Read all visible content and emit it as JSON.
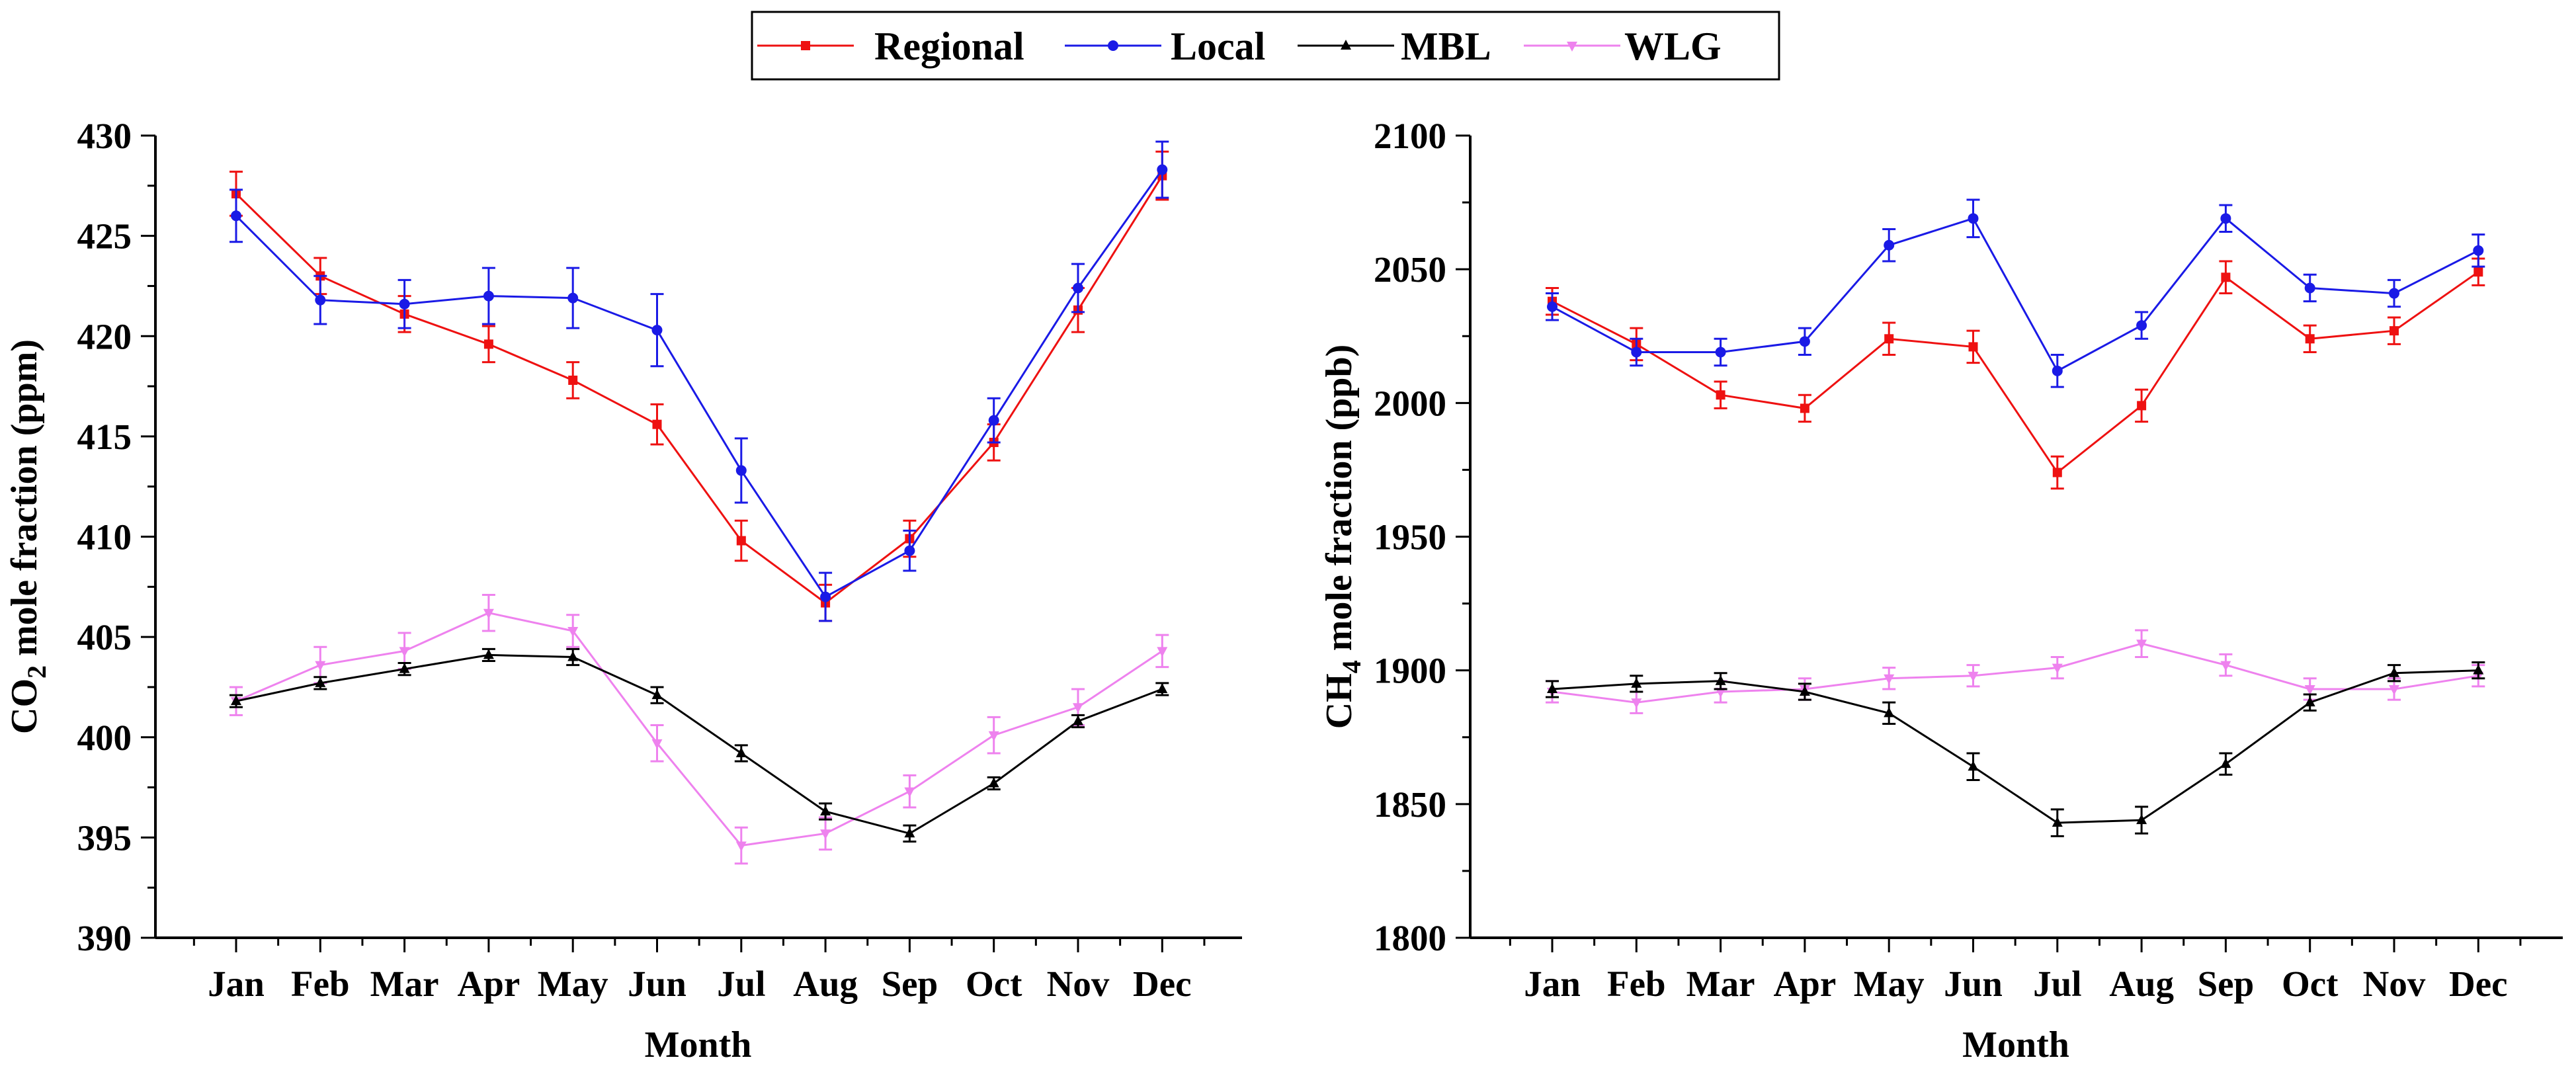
{
  "chart_data": [
    {
      "type": "line",
      "xlabel": "Month",
      "ylabel_main": "CO",
      "ylabel_sub": "2",
      "ylabel_rest": " mole fraction (ppm)",
      "ylim": [
        390,
        430
      ],
      "yticks": [
        390,
        395,
        400,
        405,
        410,
        415,
        420,
        425,
        430
      ],
      "categories": [
        "Jan",
        "Feb",
        "Mar",
        "Apr",
        "May",
        "Jun",
        "Jul",
        "Aug",
        "Sep",
        "Oct",
        "Nov",
        "Dec"
      ],
      "series": [
        {
          "name": "WLG",
          "color": "#ee82ee",
          "marker": "triangle-down",
          "values": [
            401.8,
            403.6,
            404.3,
            406.2,
            405.3,
            399.7,
            394.6,
            395.2,
            397.3,
            400.1,
            401.5,
            404.3
          ],
          "errors": [
            0.7,
            0.9,
            0.9,
            0.9,
            0.8,
            0.9,
            0.9,
            0.8,
            0.8,
            0.9,
            0.9,
            0.8
          ]
        },
        {
          "name": "MBL",
          "color": "#000000",
          "marker": "triangle-up",
          "values": [
            401.8,
            402.7,
            403.4,
            404.1,
            404.0,
            402.1,
            399.2,
            396.3,
            395.2,
            397.7,
            400.8,
            402.4
          ],
          "errors": [
            0.3,
            0.3,
            0.3,
            0.3,
            0.4,
            0.4,
            0.4,
            0.4,
            0.4,
            0.3,
            0.3,
            0.3
          ]
        },
        {
          "name": "Regional",
          "color": "#ee1111",
          "marker": "square",
          "values": [
            427.1,
            423.0,
            421.1,
            419.6,
            417.8,
            415.6,
            409.8,
            406.7,
            409.9,
            414.7,
            421.3,
            428.0
          ],
          "errors": [
            1.1,
            0.9,
            0.9,
            0.9,
            0.9,
            1.0,
            1.0,
            0.9,
            0.9,
            0.9,
            1.1,
            1.2
          ]
        },
        {
          "name": "Local",
          "color": "#1a1ae6",
          "marker": "circle",
          "values": [
            426.0,
            421.8,
            421.6,
            422.0,
            421.9,
            420.3,
            413.3,
            407.0,
            409.3,
            415.8,
            422.4,
            428.3
          ],
          "errors": [
            1.3,
            1.2,
            1.2,
            1.4,
            1.5,
            1.8,
            1.6,
            1.2,
            1.0,
            1.1,
            1.2,
            1.4
          ]
        }
      ]
    },
    {
      "type": "line",
      "xlabel": "Month",
      "ylabel_main": "CH",
      "ylabel_sub": "4",
      "ylabel_rest": " mole fraction (ppb)",
      "ylim": [
        1800,
        2100
      ],
      "yticks": [
        1800,
        1850,
        1900,
        1950,
        2000,
        2050,
        2100
      ],
      "categories": [
        "Jan",
        "Feb",
        "Mar",
        "Apr",
        "May",
        "Jun",
        "Jul",
        "Aug",
        "Sep",
        "Oct",
        "Nov",
        "Dec"
      ],
      "series": [
        {
          "name": "WLG",
          "color": "#ee82ee",
          "marker": "triangle-down",
          "values": [
            1892,
            1888,
            1892,
            1893,
            1897,
            1898,
            1901,
            1910,
            1902,
            1893,
            1893,
            1898
          ],
          "errors": [
            4,
            4,
            4,
            4,
            4,
            4,
            4,
            5,
            4,
            4,
            4,
            4
          ]
        },
        {
          "name": "MBL",
          "color": "#000000",
          "marker": "triangle-up",
          "values": [
            1893,
            1895,
            1896,
            1892,
            1884,
            1864,
            1843,
            1844,
            1865,
            1888,
            1899,
            1900
          ],
          "errors": [
            3,
            3,
            3,
            3,
            4,
            5,
            5,
            5,
            4,
            3,
            3,
            3
          ]
        },
        {
          "name": "Regional",
          "color": "#ee1111",
          "marker": "square",
          "values": [
            2038,
            2022,
            2003,
            1998,
            2024,
            2021,
            1974,
            1999,
            2047,
            2024,
            2027,
            2049
          ],
          "errors": [
            5,
            6,
            5,
            5,
            6,
            6,
            6,
            6,
            6,
            5,
            5,
            5
          ]
        },
        {
          "name": "Local",
          "color": "#1a1ae6",
          "marker": "circle",
          "values": [
            2036,
            2019,
            2019,
            2023,
            2059,
            2069,
            2012,
            2029,
            2069,
            2043,
            2041,
            2057
          ],
          "errors": [
            5,
            5,
            5,
            5,
            6,
            7,
            6,
            5,
            5,
            5,
            5,
            6
          ]
        }
      ]
    }
  ],
  "legend": {
    "position": "top-center",
    "items": [
      {
        "label": "Regional",
        "color": "#ee1111",
        "marker": "square"
      },
      {
        "label": "Local",
        "color": "#1a1ae6",
        "marker": "circle"
      },
      {
        "label": "MBL",
        "color": "#000000",
        "marker": "triangle-up"
      },
      {
        "label": "WLG",
        "color": "#ee82ee",
        "marker": "triangle-down"
      }
    ]
  }
}
